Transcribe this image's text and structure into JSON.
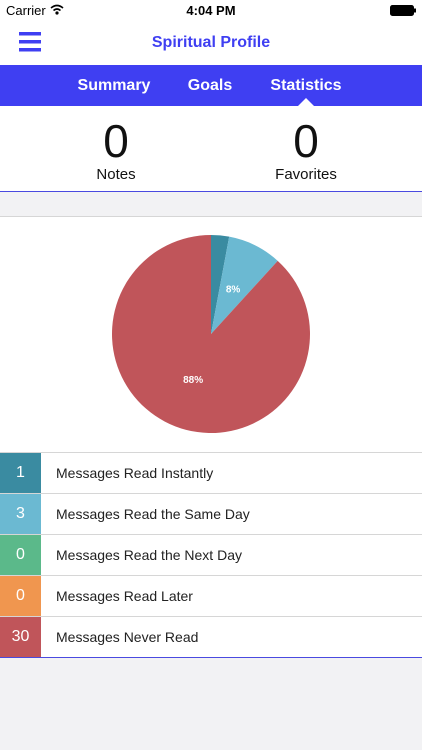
{
  "status_bar": {
    "carrier": "Carrier",
    "time": "4:04 PM"
  },
  "nav": {
    "title": "Spiritual Profile"
  },
  "tabs": [
    "Summary",
    "Goals",
    "Statistics"
  ],
  "selected_tab": 2,
  "counts": [
    {
      "value": 0,
      "label": "Notes"
    },
    {
      "value": 0,
      "label": "Favorites"
    }
  ],
  "chart_data": {
    "type": "pie",
    "categories": [
      "Messages Read Instantly",
      "Messages Read the Same Day",
      "Messages Read the Next Day",
      "Messages Read Later",
      "Messages Never Read"
    ],
    "values": [
      1,
      3,
      0,
      0,
      30
    ],
    "colors": [
      "#3a8ba1",
      "#6bb9d2",
      "#5bb98a",
      "#f0964f",
      "#c0555a"
    ],
    "slice_labels": [
      null,
      "8%",
      null,
      null,
      "88%"
    ]
  }
}
